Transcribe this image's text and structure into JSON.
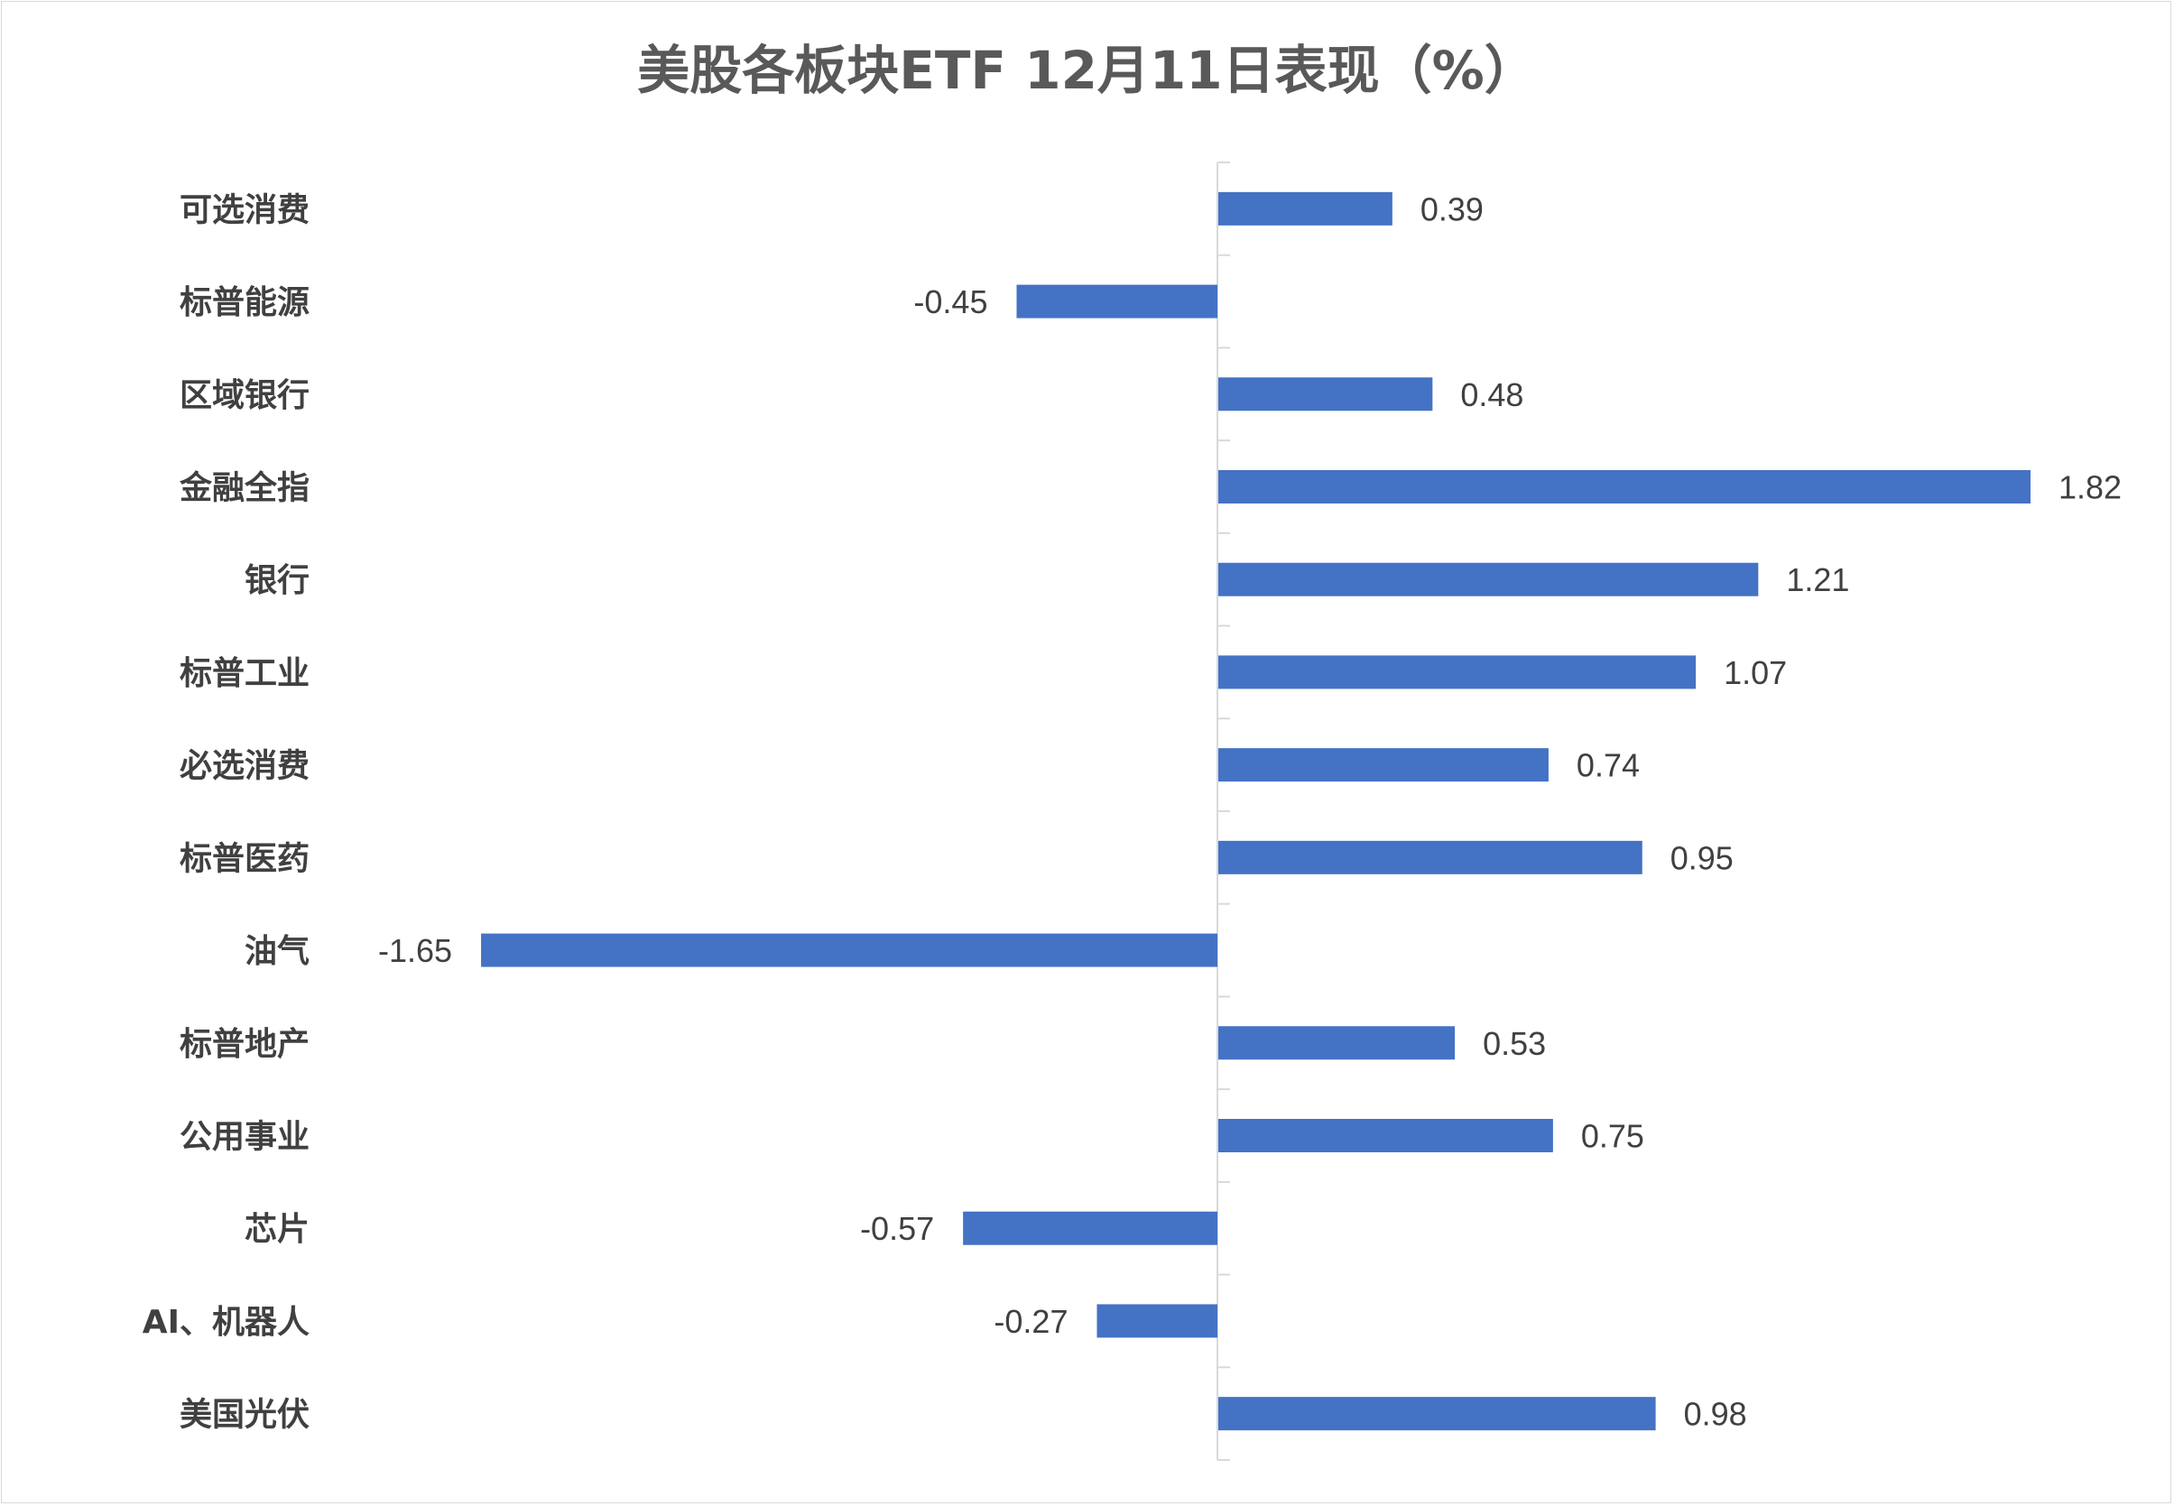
{
  "chart_data": {
    "type": "bar",
    "orientation": "horizontal",
    "title": "美股各板块ETF  12月11日表现（%）",
    "categories": [
      "可选消费",
      "标普能源",
      "区域银行",
      "金融全指",
      "银行",
      "标普工业",
      "必选消费",
      "标普医药",
      "油气",
      "标普地产",
      "公用事业",
      "芯片",
      "AI、机器人",
      "美国光伏"
    ],
    "values": [
      0.39,
      -0.45,
      0.48,
      1.82,
      1.21,
      1.07,
      0.74,
      0.95,
      -1.65,
      0.53,
      0.75,
      -0.57,
      -0.27,
      0.98
    ],
    "value_labels": [
      "0.39",
      "-0.45",
      "0.48",
      "1.82",
      "1.21",
      "1.07",
      "0.74",
      "0.95",
      "-1.65",
      "0.53",
      "0.75",
      "-0.57",
      "-0.27",
      "0.98"
    ],
    "xlim": [
      -2.7,
      2.0
    ],
    "grid": false,
    "legend": "none",
    "bar_color": "#4472C4",
    "axis_color": "#d9d9d9"
  }
}
